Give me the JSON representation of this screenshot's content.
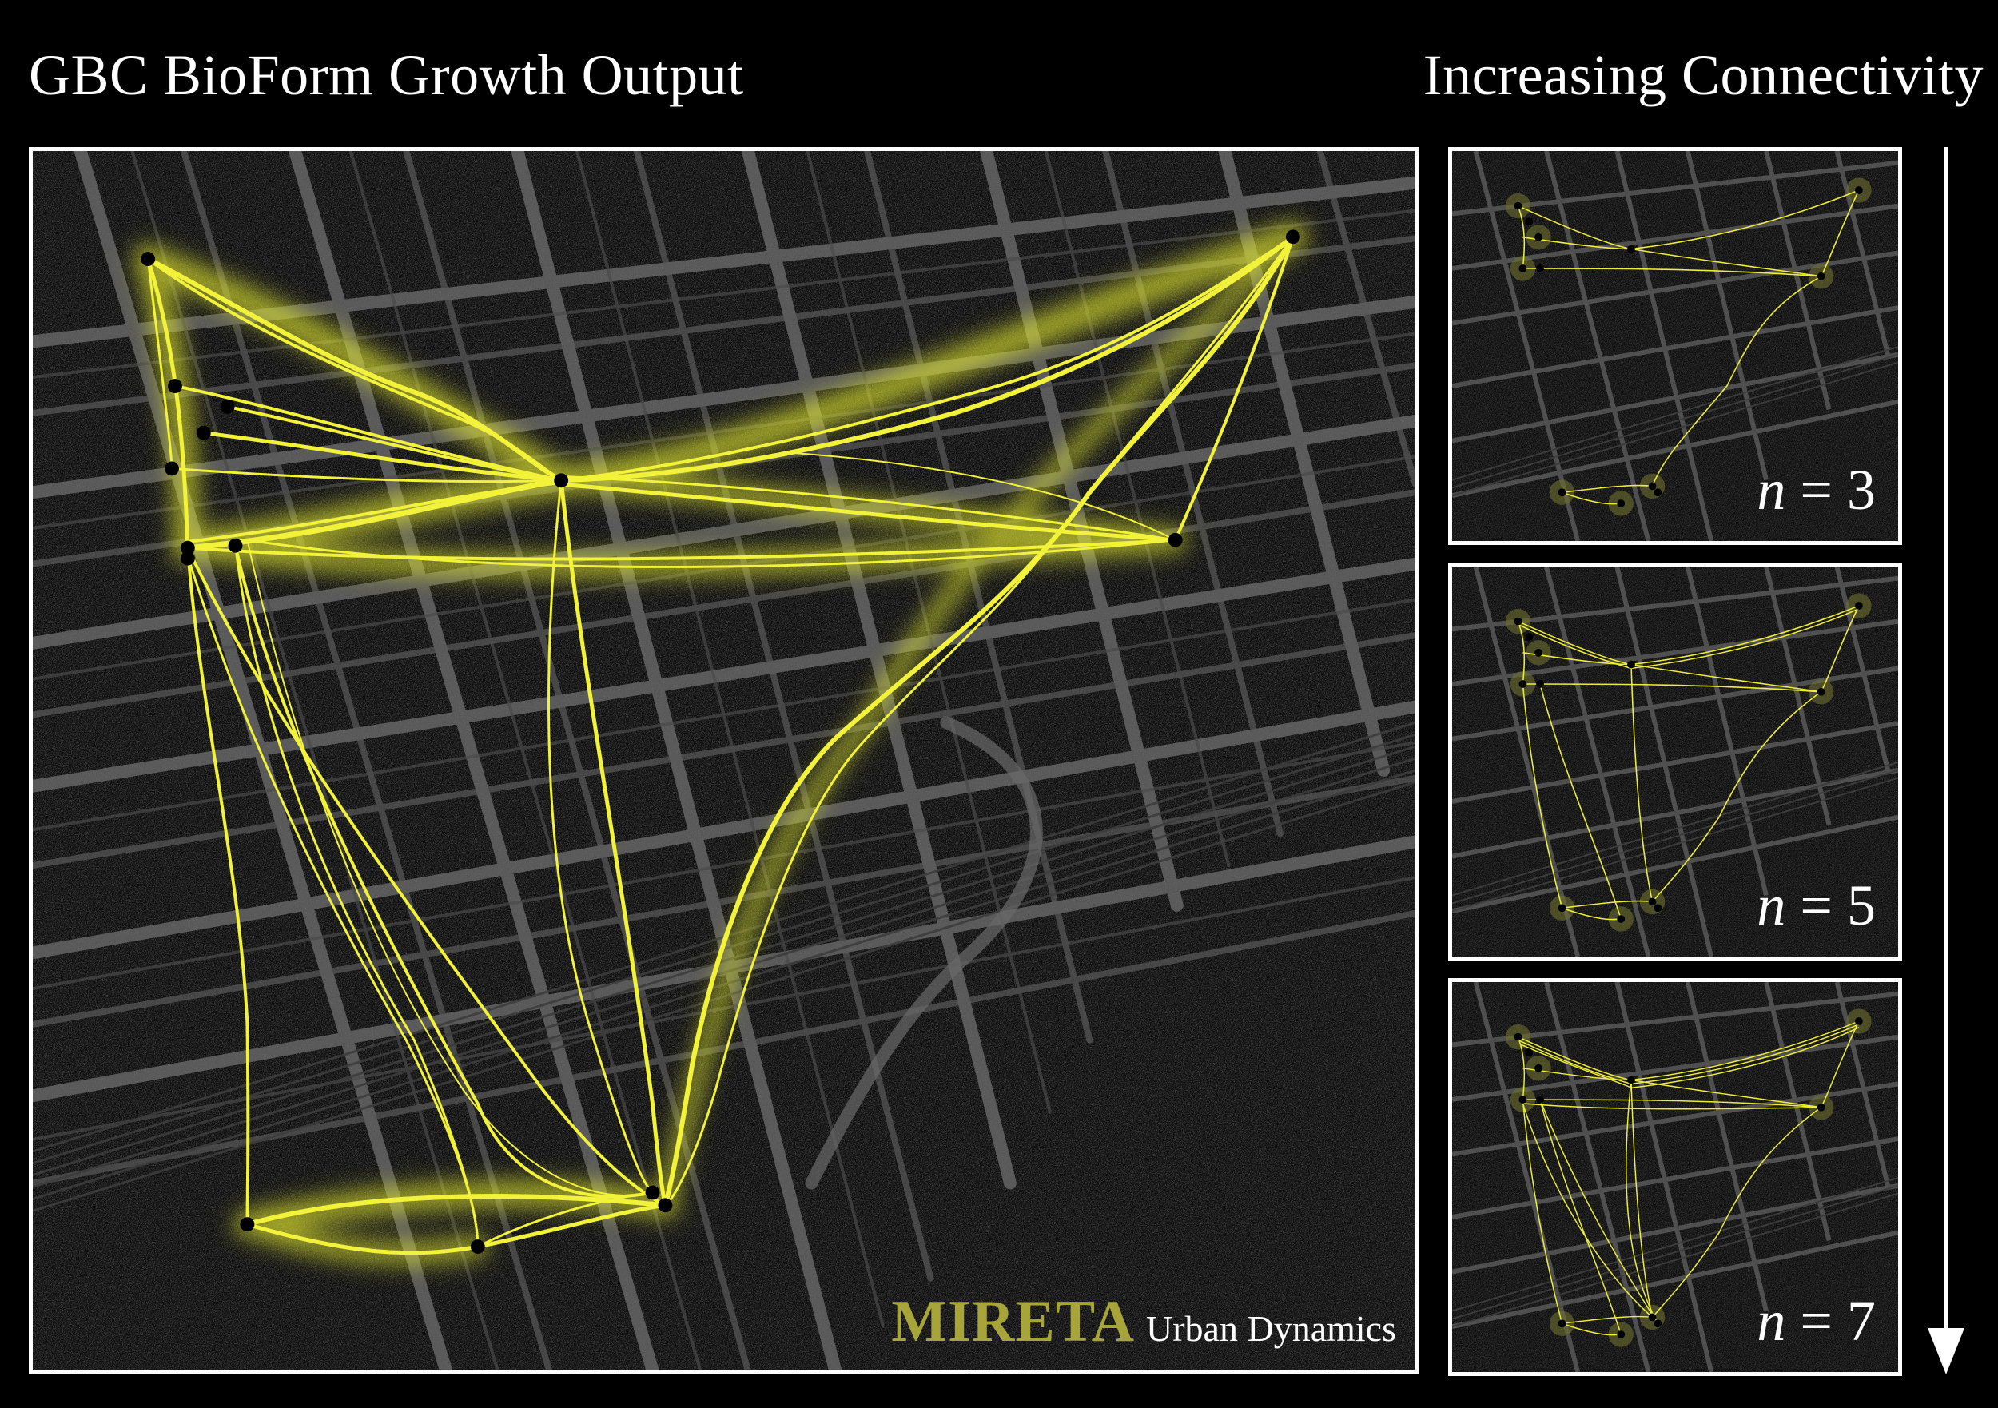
{
  "header": {
    "title": "GBC BioForm Growth Output",
    "connectivity_title": "Increasing Connectivity"
  },
  "brand": {
    "name": "MIRETA",
    "tagline": "Urban Dynamics"
  },
  "colors": {
    "background": "#000000",
    "network": "#f2f23a",
    "glow": "#e8ee2e",
    "node": "#000000",
    "brand": "#a7a43a",
    "streets": "#6c6c6c"
  },
  "thumbnails": [
    {
      "id": "n3",
      "variable": "n",
      "equals": "=",
      "value": "3"
    },
    {
      "id": "n5",
      "variable": "n",
      "equals": "=",
      "value": "5"
    },
    {
      "id": "n7",
      "variable": "n",
      "equals": "=",
      "value": "7"
    }
  ],
  "icons": {
    "down_arrow": "down-arrow-icon"
  }
}
